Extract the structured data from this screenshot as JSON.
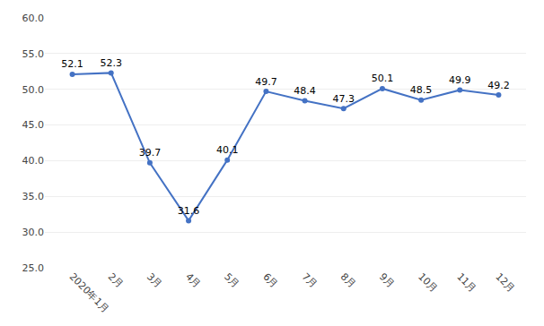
{
  "chart_data": {
    "type": "line",
    "categories": [
      "2020年1月",
      "2月",
      "3月",
      "4月",
      "5月",
      "6月",
      "7月",
      "8月",
      "9月",
      "10月",
      "11月",
      "12月"
    ],
    "values": [
      52.1,
      52.3,
      39.7,
      31.6,
      40.1,
      49.7,
      48.4,
      47.3,
      50.1,
      48.5,
      49.9,
      49.2
    ],
    "color": "#4472C4",
    "marker": "circle",
    "ylim": [
      25.0,
      60.0
    ],
    "yticks": [
      {
        "value": 25.0,
        "label": "25.0"
      },
      {
        "value": 30.0,
        "label": "30.0"
      },
      {
        "value": 35.0,
        "label": "35.0"
      },
      {
        "value": 40.0,
        "label": "40.0"
      },
      {
        "value": 45.0,
        "label": "45.0"
      },
      {
        "value": 50.0,
        "label": "50.0"
      },
      {
        "value": 55.0,
        "label": "55.0"
      },
      {
        "value": 60.0,
        "label": "60.0"
      }
    ],
    "grid": true,
    "data_labels": true
  }
}
